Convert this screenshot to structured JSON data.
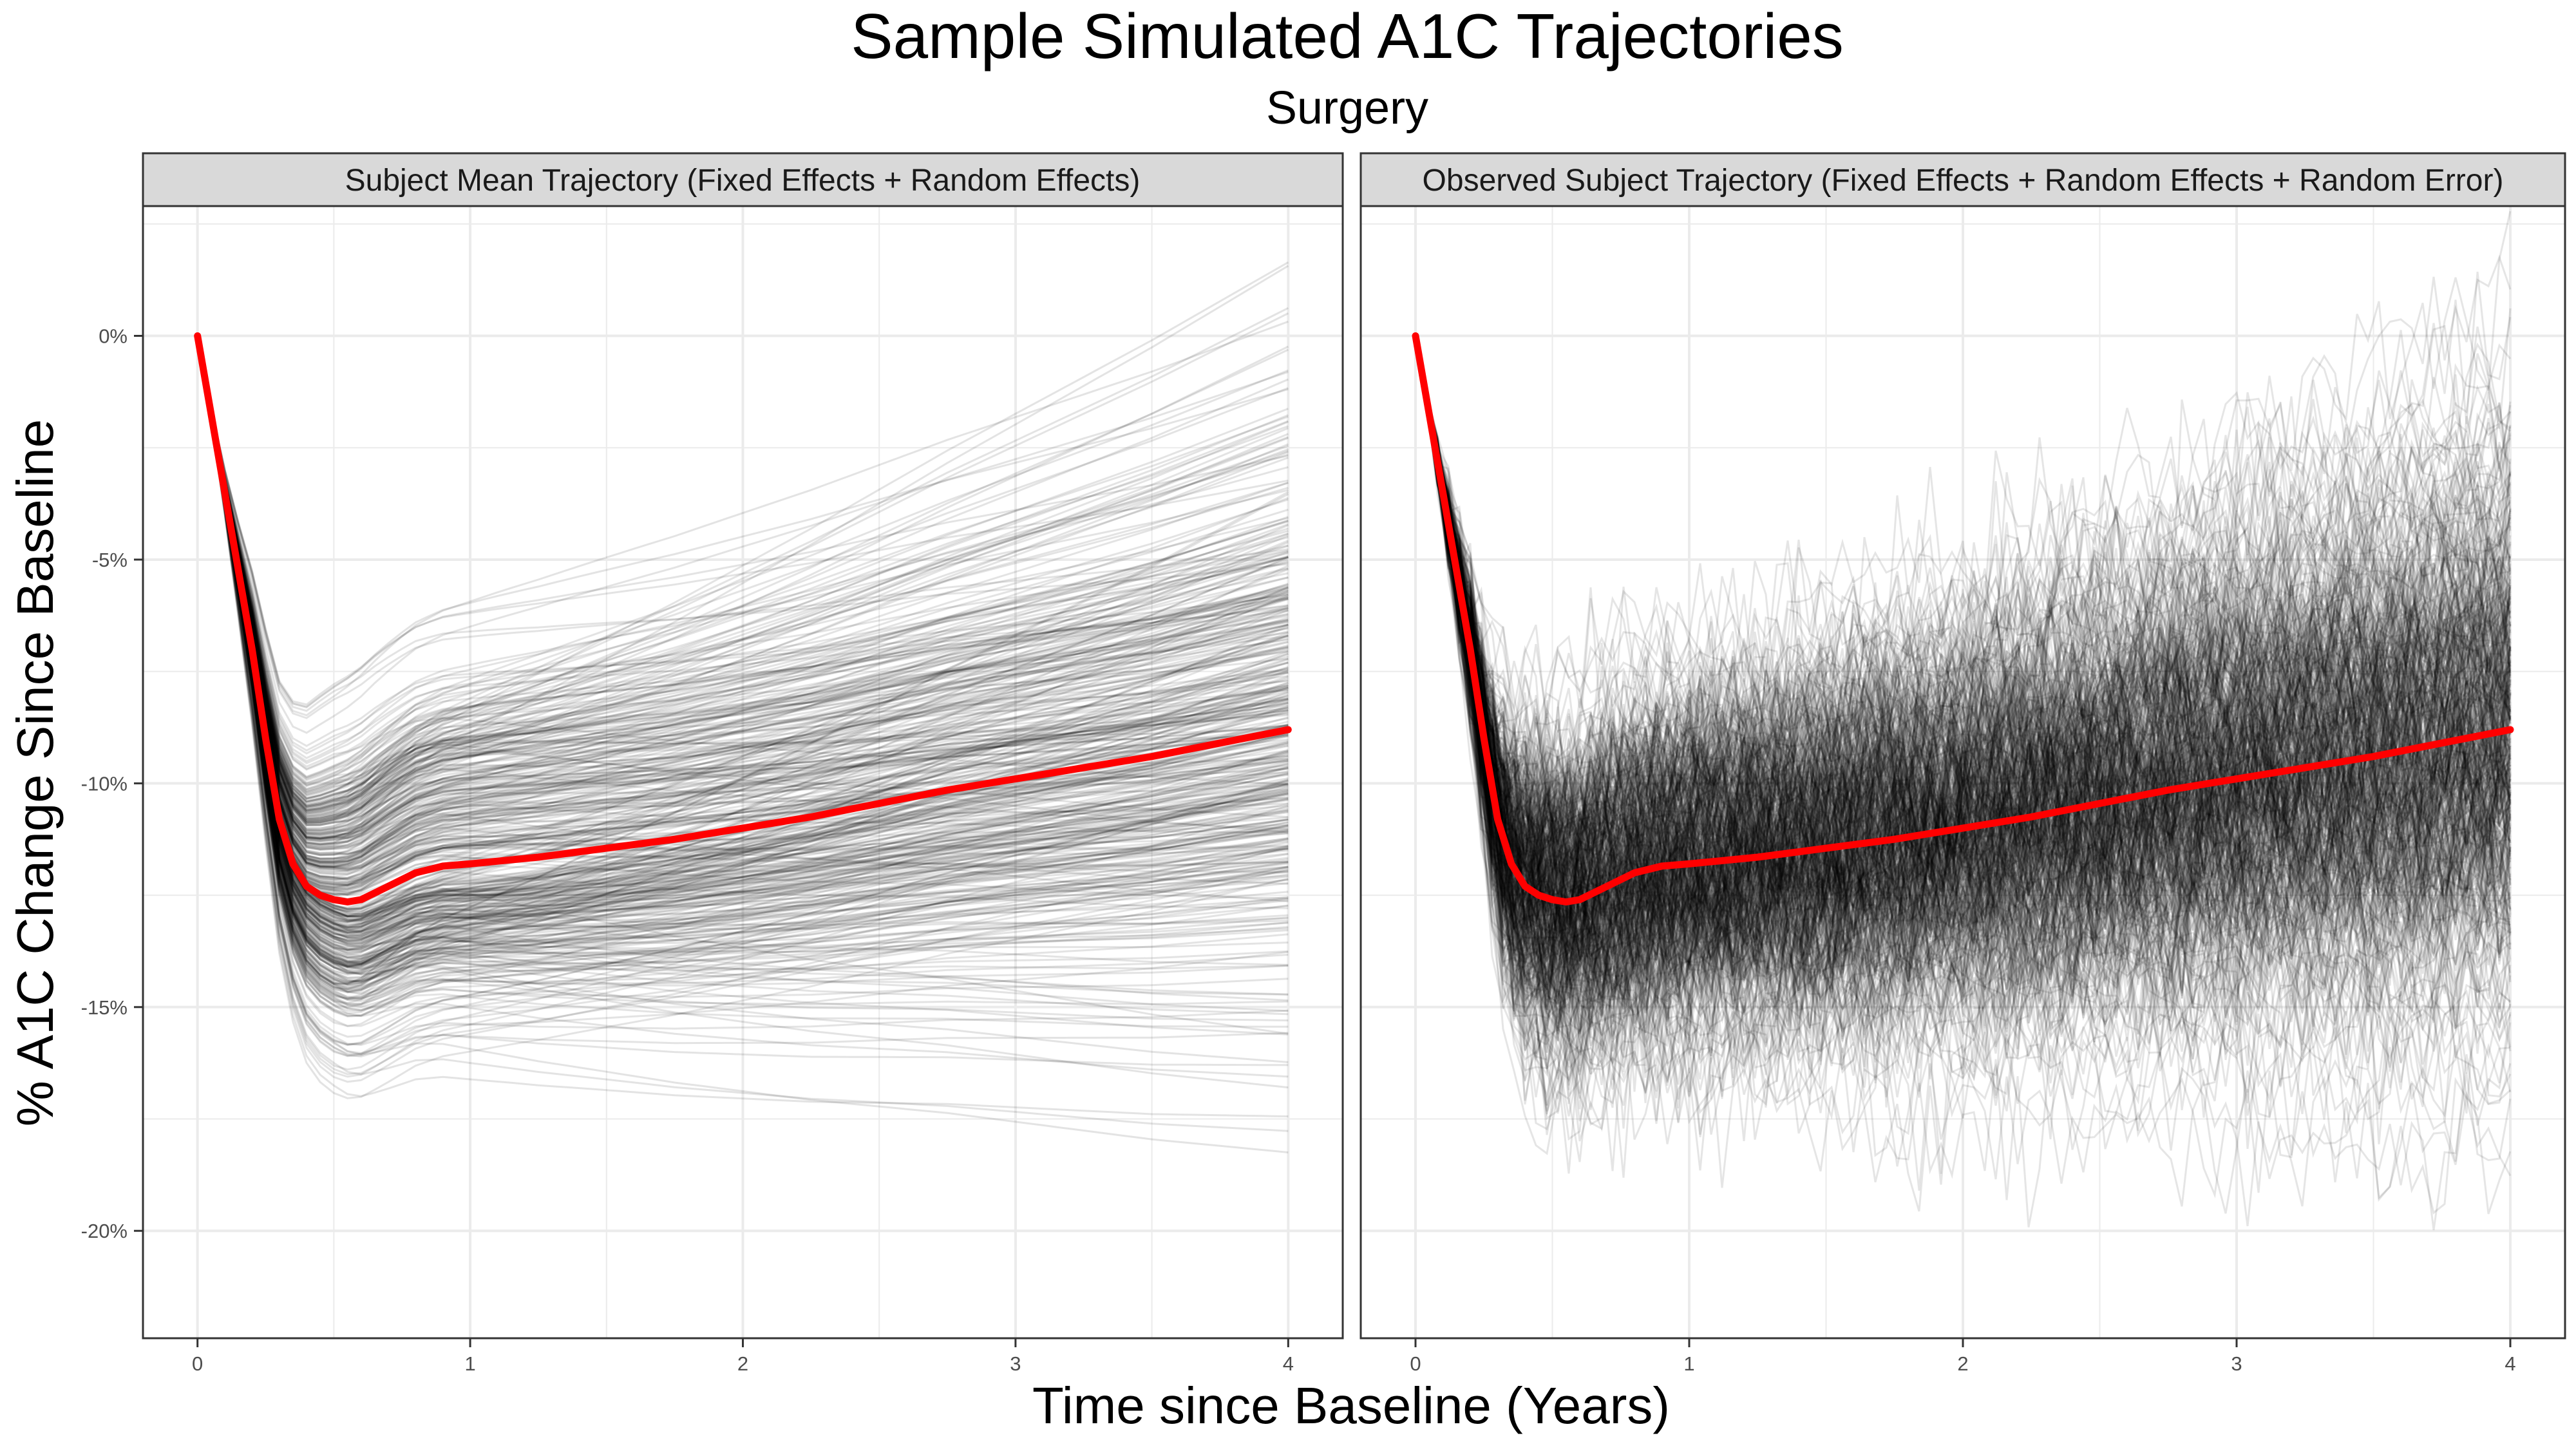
{
  "chart_data": {
    "type": "line",
    "title": "Sample Simulated A1C Trajectories",
    "subtitle": "Surgery",
    "xlabel": "Time since Baseline (Years)",
    "ylabel": "% A1C Change Since Baseline",
    "xlim": [
      -0.2,
      4.2
    ],
    "ylim": [
      -22.4,
      2.9
    ],
    "x_ticks": [
      0,
      1,
      2,
      3,
      4
    ],
    "x_tick_labels": [
      "0",
      "1",
      "2",
      "3",
      "4"
    ],
    "y_ticks": [
      0,
      -5,
      -10,
      -15,
      -20
    ],
    "y_tick_labels": [
      "0%",
      "-5%",
      "-10%",
      "-15%",
      "-20%"
    ],
    "grid": true,
    "colors": {
      "mean_line": "#ff0000",
      "subject_line": "#000000",
      "strip_fill": "#d9d9d9",
      "grid": "#ebebeb"
    },
    "panels": [
      {
        "strip": "Subject Mean Trajectory (Fixed Effects + Random Effects)"
      },
      {
        "strip": "Observed Subject Trajectory (Fixed Effects + Random Effects + Random Error)"
      }
    ],
    "series": [
      {
        "x": [
          0,
          0.1,
          0.2,
          0.25,
          0.3,
          0.35,
          0.4,
          0.45,
          0.5,
          0.55,
          0.6,
          0.7,
          0.8,
          0.9,
          1.0,
          1.25,
          1.5,
          1.75,
          2.0,
          2.25,
          2.5,
          2.75,
          3.0,
          3.25,
          3.5,
          3.75,
          4.0
        ],
        "y": [
          0,
          -3.5,
          -7.0,
          -9.0,
          -10.8,
          -11.8,
          -12.3,
          -12.5,
          -12.6,
          -12.65,
          -12.6,
          -12.3,
          -12.0,
          -11.85,
          -11.8,
          -11.65,
          -11.45,
          -11.25,
          -11.0,
          -10.75,
          -10.45,
          -10.15,
          -9.9,
          -9.65,
          -9.4,
          -9.1,
          -8.8
        ]
      }
    ]
  }
}
